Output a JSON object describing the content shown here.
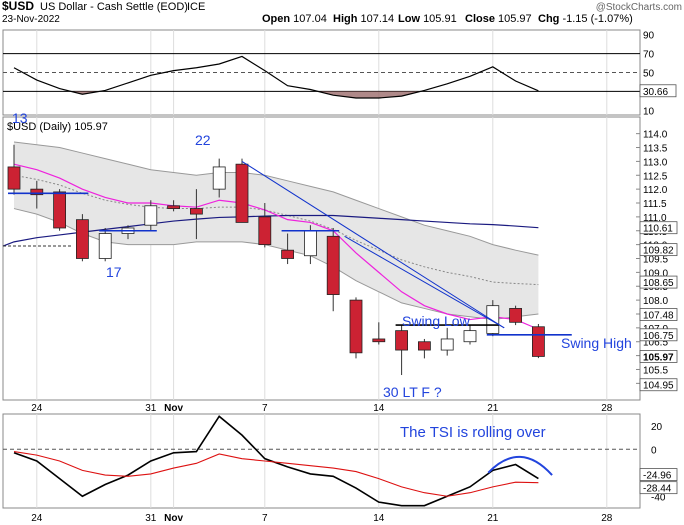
{
  "header": {
    "symbol": "$USD",
    "description": "US Dollar - Cash Settle (EOD)",
    "exchange": "ICE",
    "date": "23-Nov-2022",
    "copyright": "@StockCharts.com",
    "ohlc": [
      {
        "label": "Open",
        "value": "107.04"
      },
      {
        "label": "High",
        "value": "107.14"
      },
      {
        "label": "Low",
        "value": "105.91"
      },
      {
        "label": "Close",
        "value": "105.97"
      },
      {
        "label": "Chg",
        "value": "-1.15 (-1.07%)"
      }
    ]
  },
  "colors": {
    "up": "#ffffff",
    "down": "#cc2233",
    "blue": "#1133cc",
    "magenta": "#ee22dd",
    "navy": "#1a1a80",
    "annotation": "#2244dd"
  },
  "chart_data": [
    {
      "type": "line",
      "name": "rsi-panel",
      "y_ticks": [
        "90",
        "70",
        "50",
        "30",
        "10"
      ],
      "y_tick_values": [
        90,
        70,
        50,
        30,
        10
      ],
      "ylim": [
        5,
        95
      ],
      "last_label": "30.66",
      "levels": [
        70,
        50,
        30
      ],
      "x": [
        0,
        1,
        2,
        3,
        4,
        5,
        6,
        7,
        8,
        9,
        10,
        11,
        12,
        13,
        14,
        15,
        16,
        17,
        18,
        19,
        20,
        21,
        22,
        23
      ],
      "values": [
        55,
        42,
        33,
        27,
        31,
        39,
        47,
        52,
        55,
        59,
        67,
        52,
        36,
        32,
        26,
        23,
        23,
        25,
        31,
        38,
        46,
        56,
        41,
        30.66
      ]
    },
    {
      "type": "candlestick",
      "name": "price-panel",
      "label": "$USD (Daily) 105.97",
      "ylim": [
        104.4,
        114.6
      ],
      "y_ticks": [
        "114.0",
        "113.5",
        "113.0",
        "112.5",
        "112.0",
        "111.5",
        "111.0",
        "110.5",
        "110.0",
        "109.5",
        "109.0",
        "108.5",
        "108.0",
        "107.5",
        "107.0",
        "106.5",
        "106.0",
        "105.5",
        "105.0"
      ],
      "y_tick_values": [
        114.0,
        113.5,
        113.0,
        112.5,
        112.0,
        111.5,
        111.0,
        110.5,
        110.0,
        109.5,
        109.0,
        108.5,
        108.0,
        107.5,
        107.0,
        106.5,
        106.0,
        105.5,
        105.0
      ],
      "x_labels": [
        {
          "i": 1,
          "text": "24"
        },
        {
          "i": 6,
          "text": "31"
        },
        {
          "i": 7,
          "text": "Nov"
        },
        {
          "i": 11,
          "text": "7"
        },
        {
          "i": 16,
          "text": "14"
        },
        {
          "i": 21,
          "text": "21"
        },
        {
          "i": 26,
          "text": "28"
        }
      ],
      "right_markers": [
        {
          "text": "110.61",
          "value": 110.61
        },
        {
          "text": "109.82",
          "value": 109.82
        },
        {
          "text": "108.65",
          "value": 108.65
        },
        {
          "text": "107.48",
          "value": 107.48
        },
        {
          "text": "106.75",
          "value": 106.75
        },
        {
          "text": "105.97",
          "value": 105.97,
          "bold": true
        },
        {
          "text": "104.95",
          "value": 104.95
        }
      ],
      "candles": [
        {
          "i": 0,
          "o": 112.8,
          "h": 113.6,
          "l": 111.8,
          "c": 112.0
        },
        {
          "i": 1,
          "o": 112.0,
          "h": 112.3,
          "l": 111.3,
          "c": 111.8
        },
        {
          "i": 2,
          "o": 111.9,
          "h": 112.0,
          "l": 110.5,
          "c": 110.6
        },
        {
          "i": 3,
          "o": 110.9,
          "h": 111.1,
          "l": 109.4,
          "c": 109.5
        },
        {
          "i": 4,
          "o": 109.5,
          "h": 110.6,
          "l": 109.4,
          "c": 110.4
        },
        {
          "i": 5,
          "o": 110.4,
          "h": 110.7,
          "l": 110.2,
          "c": 110.6
        },
        {
          "i": 6,
          "o": 110.7,
          "h": 111.6,
          "l": 110.5,
          "c": 111.4
        },
        {
          "i": 7,
          "o": 111.4,
          "h": 111.6,
          "l": 111.2,
          "c": 111.3
        },
        {
          "i": 8,
          "o": 111.3,
          "h": 112.0,
          "l": 110.2,
          "c": 111.1
        },
        {
          "i": 9,
          "o": 112.0,
          "h": 113.1,
          "l": 111.7,
          "c": 112.8
        },
        {
          "i": 10,
          "o": 112.9,
          "h": 113.1,
          "l": 110.8,
          "c": 110.8
        },
        {
          "i": 11,
          "o": 111.0,
          "h": 111.5,
          "l": 109.9,
          "c": 110.0
        },
        {
          "i": 12,
          "o": 109.8,
          "h": 110.4,
          "l": 109.3,
          "c": 109.5
        },
        {
          "i": 13,
          "o": 109.6,
          "h": 110.7,
          "l": 109.3,
          "c": 110.5
        },
        {
          "i": 14,
          "o": 110.3,
          "h": 110.6,
          "l": 107.6,
          "c": 108.2
        },
        {
          "i": 15,
          "o": 108.0,
          "h": 108.1,
          "l": 105.9,
          "c": 106.1
        },
        {
          "i": 16,
          "o": 106.6,
          "h": 107.2,
          "l": 106.4,
          "c": 106.5
        },
        {
          "i": 17,
          "o": 106.9,
          "h": 107.1,
          "l": 105.3,
          "c": 106.2
        },
        {
          "i": 18,
          "o": 106.5,
          "h": 106.6,
          "l": 105.9,
          "c": 106.2
        },
        {
          "i": 19,
          "o": 106.2,
          "h": 107.0,
          "l": 106.0,
          "c": 106.6
        },
        {
          "i": 20,
          "o": 106.5,
          "h": 107.1,
          "l": 106.4,
          "c": 106.9
        },
        {
          "i": 21,
          "o": 106.8,
          "h": 108.0,
          "l": 106.7,
          "c": 107.8
        },
        {
          "i": 22,
          "o": 107.7,
          "h": 107.8,
          "l": 107.1,
          "c": 107.2
        },
        {
          "i": 23,
          "o": 107.04,
          "h": 107.14,
          "l": 105.91,
          "c": 105.97
        }
      ],
      "bb_upper": [
        113.7,
        113.6,
        113.5,
        113.3,
        113.1,
        112.9,
        112.7,
        112.6,
        112.5,
        112.6,
        112.6,
        112.5,
        112.3,
        112.1,
        111.9,
        111.6,
        111.3,
        111.0,
        110.7,
        110.5,
        110.3,
        110.0,
        109.8,
        109.62
      ],
      "bb_lower": [
        111.3,
        111.1,
        110.8,
        110.4,
        110.1,
        110.0,
        110.0,
        110.0,
        110.1,
        110.1,
        110.1,
        110.0,
        109.8,
        109.6,
        109.2,
        108.7,
        108.3,
        107.9,
        107.7,
        107.5,
        107.4,
        107.3,
        107.4,
        107.5
      ],
      "bb_mid": [
        112.5,
        112.35,
        112.15,
        111.85,
        111.6,
        111.45,
        111.35,
        111.3,
        111.3,
        111.35,
        111.35,
        111.25,
        111.05,
        110.85,
        110.55,
        110.15,
        109.8,
        109.45,
        109.2,
        109.0,
        108.85,
        108.65,
        108.6,
        108.56
      ],
      "ema_magenta": [
        112.9,
        112.7,
        112.4,
        112.0,
        111.7,
        111.5,
        111.5,
        111.4,
        111.35,
        111.6,
        111.5,
        111.25,
        110.9,
        110.8,
        110.5,
        109.7,
        109.0,
        108.3,
        107.8,
        107.5,
        107.3,
        107.4,
        107.3,
        106.95
      ],
      "ma_navy": [
        110.1,
        110.25,
        110.35,
        110.45,
        110.55,
        110.65,
        110.75,
        110.85,
        110.92,
        110.98,
        111.0,
        111.03,
        111.05,
        111.05,
        111.05,
        111.0,
        110.95,
        110.9,
        110.85,
        110.8,
        110.75,
        110.72,
        110.67,
        110.61
      ],
      "annotations": {
        "n13": "13",
        "n22": "22",
        "n17": "17",
        "swing_low": "Swing Low",
        "swing_high": "Swing High",
        "cycle": "30 LT F ?"
      }
    },
    {
      "type": "line",
      "name": "tsi-panel",
      "y_ticks": [
        "20",
        "0",
        "-20",
        "-40"
      ],
      "y_tick_values": [
        20,
        0,
        -20,
        -40
      ],
      "ylim": [
        -50,
        30
      ],
      "zero_line": 0,
      "markers": [
        {
          "text": "-24.96",
          "value": -24.96
        },
        {
          "text": "-28.44",
          "value": -28.44
        }
      ],
      "annotation": "The TSI is rolling over",
      "series": [
        {
          "name": "TSI",
          "values": [
            -3,
            -10,
            -25,
            -40,
            -30,
            -22,
            -10,
            -3,
            -2,
            28,
            12,
            -8,
            -15,
            -21,
            -23,
            -33,
            -45,
            -48,
            -48,
            -40,
            -32,
            -18,
            -13,
            -24.96
          ]
        },
        {
          "name": "Signal",
          "values": [
            -2,
            -5,
            -10,
            -18,
            -22,
            -23,
            -21,
            -16,
            -12,
            -4,
            -8,
            -10,
            -12,
            -14,
            -16,
            -19,
            -25,
            -32,
            -37,
            -40,
            -37,
            -32,
            -28,
            -28.44
          ]
        }
      ]
    }
  ]
}
